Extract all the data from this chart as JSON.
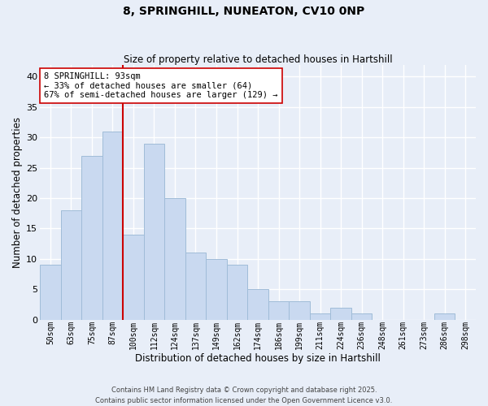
{
  "title_line1": "8, SPRINGHILL, NUNEATON, CV10 0NP",
  "title_line2": "Size of property relative to detached houses in Hartshill",
  "xlabel": "Distribution of detached houses by size in Hartshill",
  "ylabel": "Number of detached properties",
  "bar_labels": [
    "50sqm",
    "63sqm",
    "75sqm",
    "87sqm",
    "100sqm",
    "112sqm",
    "124sqm",
    "137sqm",
    "149sqm",
    "162sqm",
    "174sqm",
    "186sqm",
    "199sqm",
    "211sqm",
    "224sqm",
    "236sqm",
    "248sqm",
    "261sqm",
    "273sqm",
    "286sqm",
    "298sqm"
  ],
  "bar_values": [
    9,
    18,
    27,
    31,
    14,
    29,
    20,
    11,
    10,
    9,
    5,
    3,
    3,
    1,
    2,
    1,
    0,
    0,
    0,
    1,
    0
  ],
  "bar_color": "#c9d9f0",
  "bar_edge_color": "#a0bcd8",
  "vline_x": 3.5,
  "vline_color": "#cc0000",
  "ylim": [
    0,
    42
  ],
  "yticks": [
    0,
    5,
    10,
    15,
    20,
    25,
    30,
    35,
    40
  ],
  "annotation_title": "8 SPRINGHILL: 93sqm",
  "annotation_line1": "← 33% of detached houses are smaller (64)",
  "annotation_line2": "67% of semi-detached houses are larger (129) →",
  "annotation_box_color": "#ffffff",
  "annotation_box_edge": "#cc0000",
  "footer_line1": "Contains HM Land Registry data © Crown copyright and database right 2025.",
  "footer_line2": "Contains public sector information licensed under the Open Government Licence v3.0.",
  "background_color": "#e8eef8",
  "plot_bg_color": "#e8eef8",
  "grid_color": "#ffffff"
}
